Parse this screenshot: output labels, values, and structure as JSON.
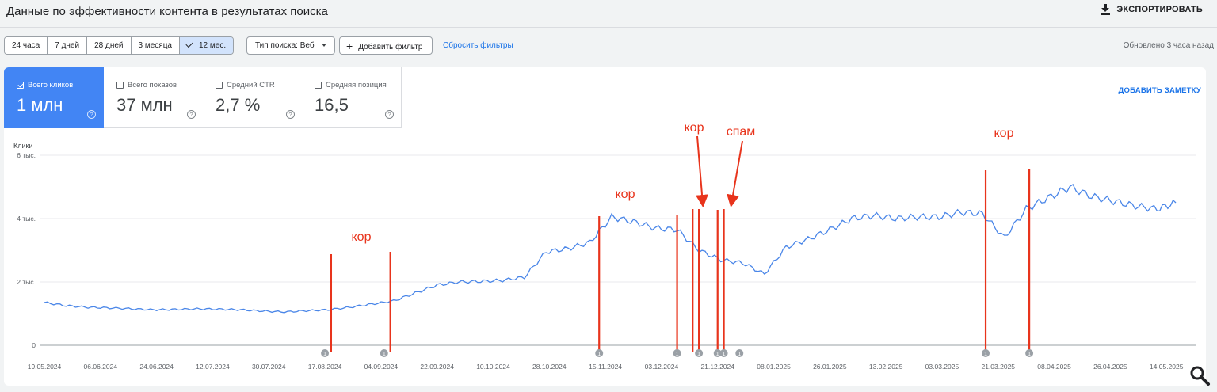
{
  "header": {
    "title": "Данные по эффективности контента в результатах поиска",
    "export_label": "ЭКСПОРТИРОВАТЬ"
  },
  "filters": {
    "ranges": [
      "24 часа",
      "7 дней",
      "28 дней",
      "3 месяца",
      "12 мес."
    ],
    "active_range": "12 мес.",
    "search_type": "Тип поиска: Веб",
    "add_filter": "Добавить фильтр",
    "reset": "Сбросить фильтры",
    "updated": "Обновлено 3 часа назад"
  },
  "metrics": [
    {
      "label": "Всего кликов",
      "value": "1 млн",
      "checked": true
    },
    {
      "label": "Всего показов",
      "value": "37 млн",
      "checked": false
    },
    {
      "label": "Средний CTR",
      "value": "2,7 %",
      "checked": false
    },
    {
      "label": "Средняя позиция",
      "value": "16,5",
      "checked": false
    }
  ],
  "add_note": "ДОБАВИТЬ ЗАМЕТКУ",
  "colors": {
    "line": "#4a86e8",
    "accent": "#1a73e8",
    "annotation": "#e8341c",
    "metric_active": "#4285f4"
  },
  "icons": {
    "export": "download-icon",
    "zoom": "magnifier-icon",
    "add": "plus-icon",
    "dropdown": "caret-down-icon",
    "check": "checkmark-icon"
  },
  "chart_data": {
    "type": "line",
    "ylabel": "Клики",
    "ylim": [
      0,
      6000
    ],
    "y_ticks": [
      "0",
      "2 тыс.",
      "4 тыс.",
      "6 тыс."
    ],
    "y_tick_values": [
      0,
      2000,
      4000,
      6000
    ],
    "x_start": "19.05.2024",
    "x_end": "17.05.2025",
    "x_tick_labels": [
      "19.05.2024",
      "06.06.2024",
      "24.06.2024",
      "12.07.2024",
      "30.07.2024",
      "17.08.2024",
      "04.09.2024",
      "22.09.2024",
      "10.10.2024",
      "28.10.2024",
      "15.11.2024",
      "03.12.2024",
      "21.12.2024",
      "08.01.2025",
      "26.01.2025",
      "13.02.2025",
      "03.03.2025",
      "21.03.2025",
      "08.04.2025",
      "26.04.2025",
      "14.05.2025"
    ],
    "grid": true,
    "series": [
      {
        "values_key": "weekly",
        "x": [
          "19.05.2024",
          "26.05.2024",
          "02.06.2024",
          "09.06.2024",
          "16.06.2024",
          "23.06.2024",
          "30.06.2024",
          "07.07.2024",
          "14.07.2024",
          "21.07.2024",
          "28.07.2024",
          "04.08.2024",
          "11.08.2024",
          "18.08.2024",
          "25.08.2024",
          "01.09.2024",
          "08.09.2024",
          "15.09.2024",
          "22.09.2024",
          "29.09.2024",
          "06.10.2024",
          "13.10.2024",
          "20.10.2024",
          "27.10.2024",
          "03.11.2024",
          "10.11.2024",
          "17.11.2024",
          "24.11.2024",
          "01.12.2024",
          "08.12.2024",
          "15.12.2024",
          "22.12.2024",
          "29.12.2024",
          "05.01.2025",
          "12.01.2025",
          "19.01.2025",
          "26.01.2025",
          "02.02.2025",
          "09.02.2025",
          "16.02.2025",
          "23.02.2025",
          "02.03.2025",
          "09.03.2025",
          "16.03.2025",
          "23.03.2025",
          "30.03.2025",
          "06.04.2025",
          "13.04.2025",
          "20.04.2025",
          "27.04.2025",
          "04.05.2025",
          "11.05.2025",
          "17.05.2025"
        ],
        "y": [
          1350,
          1250,
          1200,
          1180,
          1150,
          1120,
          1130,
          1150,
          1140,
          1120,
          1080,
          1050,
          1090,
          1120,
          1200,
          1300,
          1400,
          1650,
          1900,
          2000,
          2020,
          2050,
          2150,
          2950,
          3050,
          3250,
          4050,
          3900,
          3700,
          3650,
          3000,
          2700,
          2600,
          2250,
          3100,
          3350,
          3650,
          4000,
          4100,
          4000,
          4050,
          4050,
          4200,
          4150,
          3400,
          4300,
          4650,
          5000,
          4700,
          4550,
          4400,
          4300,
          4500
        ]
      }
    ],
    "annotations": [
      {
        "label": "кор",
        "events": [
          "19.08.2024",
          "07.09.2024"
        ]
      },
      {
        "label": "кор",
        "events": [
          "13.11.2024",
          "08.12.2024"
        ]
      },
      {
        "label": "кор",
        "events": [
          "15.12.2024"
        ]
      },
      {
        "label": "спам",
        "events": [
          "21.12.2024"
        ]
      },
      {
        "label": "кор",
        "events": [
          "17.03.2025",
          "31.03.2025"
        ]
      }
    ],
    "markers": [
      "17.08.2024",
      "05.09.2024",
      "13.11.2024",
      "08.12.2024",
      "15.12.2024",
      "21.12.2024",
      "23.12.2024",
      "28.12.2024",
      "17.03.2025",
      "31.03.2025"
    ],
    "marker_label": "1"
  }
}
